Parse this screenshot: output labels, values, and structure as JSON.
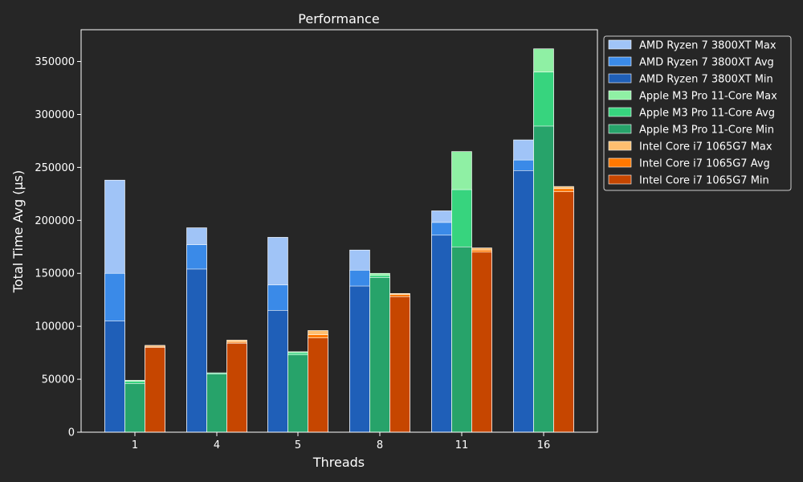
{
  "chart_data": {
    "type": "bar",
    "title": "Performance",
    "xlabel": "Threads",
    "ylabel": "Total Time Avg (µs)",
    "categories": [
      "1",
      "4",
      "5",
      "8",
      "11",
      "16"
    ],
    "ylim": [
      0,
      380000
    ],
    "yticks": [
      0,
      50000,
      100000,
      150000,
      200000,
      250000,
      300000,
      350000
    ],
    "legend_position": "upper-right-outside",
    "groups": [
      {
        "name": "AMD Ryzen 7 3800XT",
        "series": [
          {
            "name": "AMD Ryzen 7 3800XT Max",
            "stat": "max",
            "color": "#a0c4f7",
            "values": [
              238000,
              193000,
              184000,
              172000,
              209000,
              276000
            ]
          },
          {
            "name": "AMD Ryzen 7 3800XT Avg",
            "stat": "avg",
            "color": "#3a8ae8",
            "values": [
              150000,
              177000,
              139000,
              153000,
              198000,
              257000
            ]
          },
          {
            "name": "AMD Ryzen 7 3800XT Min",
            "stat": "min",
            "color": "#1f5fb8",
            "values": [
              105000,
              154000,
              115000,
              138000,
              186000,
              247000
            ]
          }
        ]
      },
      {
        "name": "Apple M3 Pro 11-Core",
        "series": [
          {
            "name": "Apple M3 Pro 11-Core Max",
            "stat": "max",
            "color": "#8ff0a4",
            "values": [
              49000,
              56000,
              76000,
              150000,
              265000,
              362000
            ]
          },
          {
            "name": "Apple M3 Pro 11-Core Avg",
            "stat": "avg",
            "color": "#37d47e",
            "values": [
              48000,
              56000,
              75000,
              148000,
              229000,
              340000
            ]
          },
          {
            "name": "Apple M3 Pro 11-Core Min",
            "stat": "min",
            "color": "#27a36a",
            "values": [
              46000,
              55000,
              73000,
              146000,
              175000,
              289000
            ]
          }
        ]
      },
      {
        "name": "Intel Core i7 1065G7",
        "series": [
          {
            "name": "Intel Core i7 1065G7 Max",
            "stat": "max",
            "color": "#ffbe6f",
            "values": [
              82000,
              87000,
              96000,
              131000,
              174000,
              232000
            ]
          },
          {
            "name": "Intel Core i7 1065G7 Avg",
            "stat": "avg",
            "color": "#ff7800",
            "values": [
              81000,
              85000,
              92000,
              130000,
              172000,
              230000
            ]
          },
          {
            "name": "Intel Core i7 1065G7 Min",
            "stat": "min",
            "color": "#c64600",
            "values": [
              80000,
              84000,
              89000,
              128000,
              170000,
              227000
            ]
          }
        ]
      }
    ]
  },
  "colors": {
    "background": "#262626",
    "foreground": "#ffffff"
  }
}
